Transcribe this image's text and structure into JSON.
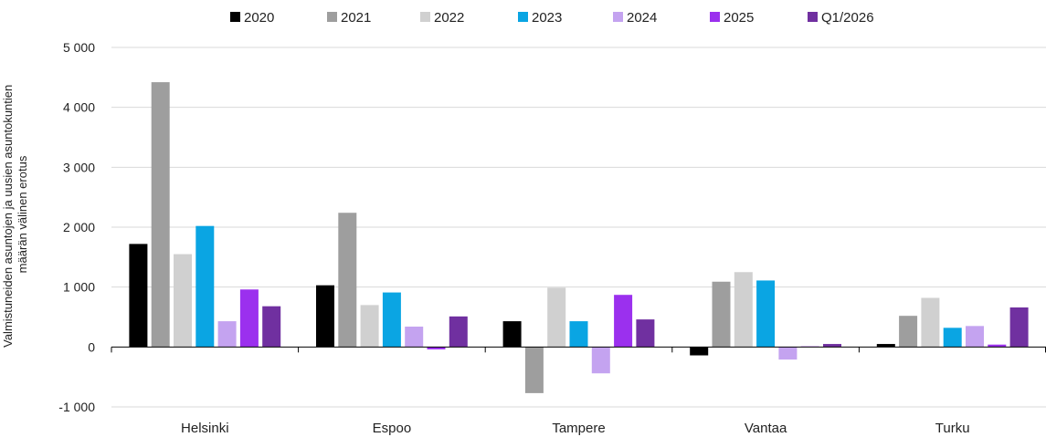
{
  "chart_data": {
    "type": "bar",
    "ylabel_lines": [
      "Valmistuneiden asuntojen ja uusien asuntokuntien",
      "määrän välinen erotus"
    ],
    "categories": [
      "Helsinki",
      "Espoo",
      "Tampere",
      "Vantaa",
      "Turku"
    ],
    "ylim": [
      -1000,
      5000
    ],
    "y_ticks": [
      -1000,
      0,
      1000,
      2000,
      3000,
      4000,
      5000
    ],
    "y_tick_labels": [
      "-1 000",
      "0",
      "1 000",
      "2 000",
      "3 000",
      "4 000",
      "5 000"
    ],
    "grid": true,
    "legend_position": "top",
    "series": [
      {
        "name": "2020",
        "color": "#000000",
        "values": [
          1720,
          1030,
          430,
          -140,
          50
        ]
      },
      {
        "name": "2021",
        "color": "#9e9e9e",
        "values": [
          4420,
          2240,
          -770,
          1090,
          520
        ]
      },
      {
        "name": "2022",
        "color": "#d0d0d0",
        "values": [
          1550,
          700,
          990,
          1250,
          820
        ]
      },
      {
        "name": "2023",
        "color": "#0aa5e3",
        "values": [
          2020,
          910,
          430,
          1110,
          320
        ]
      },
      {
        "name": "2024",
        "color": "#c4a3f0",
        "values": [
          430,
          340,
          -440,
          -210,
          350
        ]
      },
      {
        "name": "2025",
        "color": "#9b30ee",
        "values": [
          960,
          -40,
          870,
          10,
          40
        ]
      },
      {
        "name": "Q1/2026",
        "color": "#7030a0",
        "values": [
          680,
          510,
          460,
          50,
          660
        ]
      }
    ]
  }
}
